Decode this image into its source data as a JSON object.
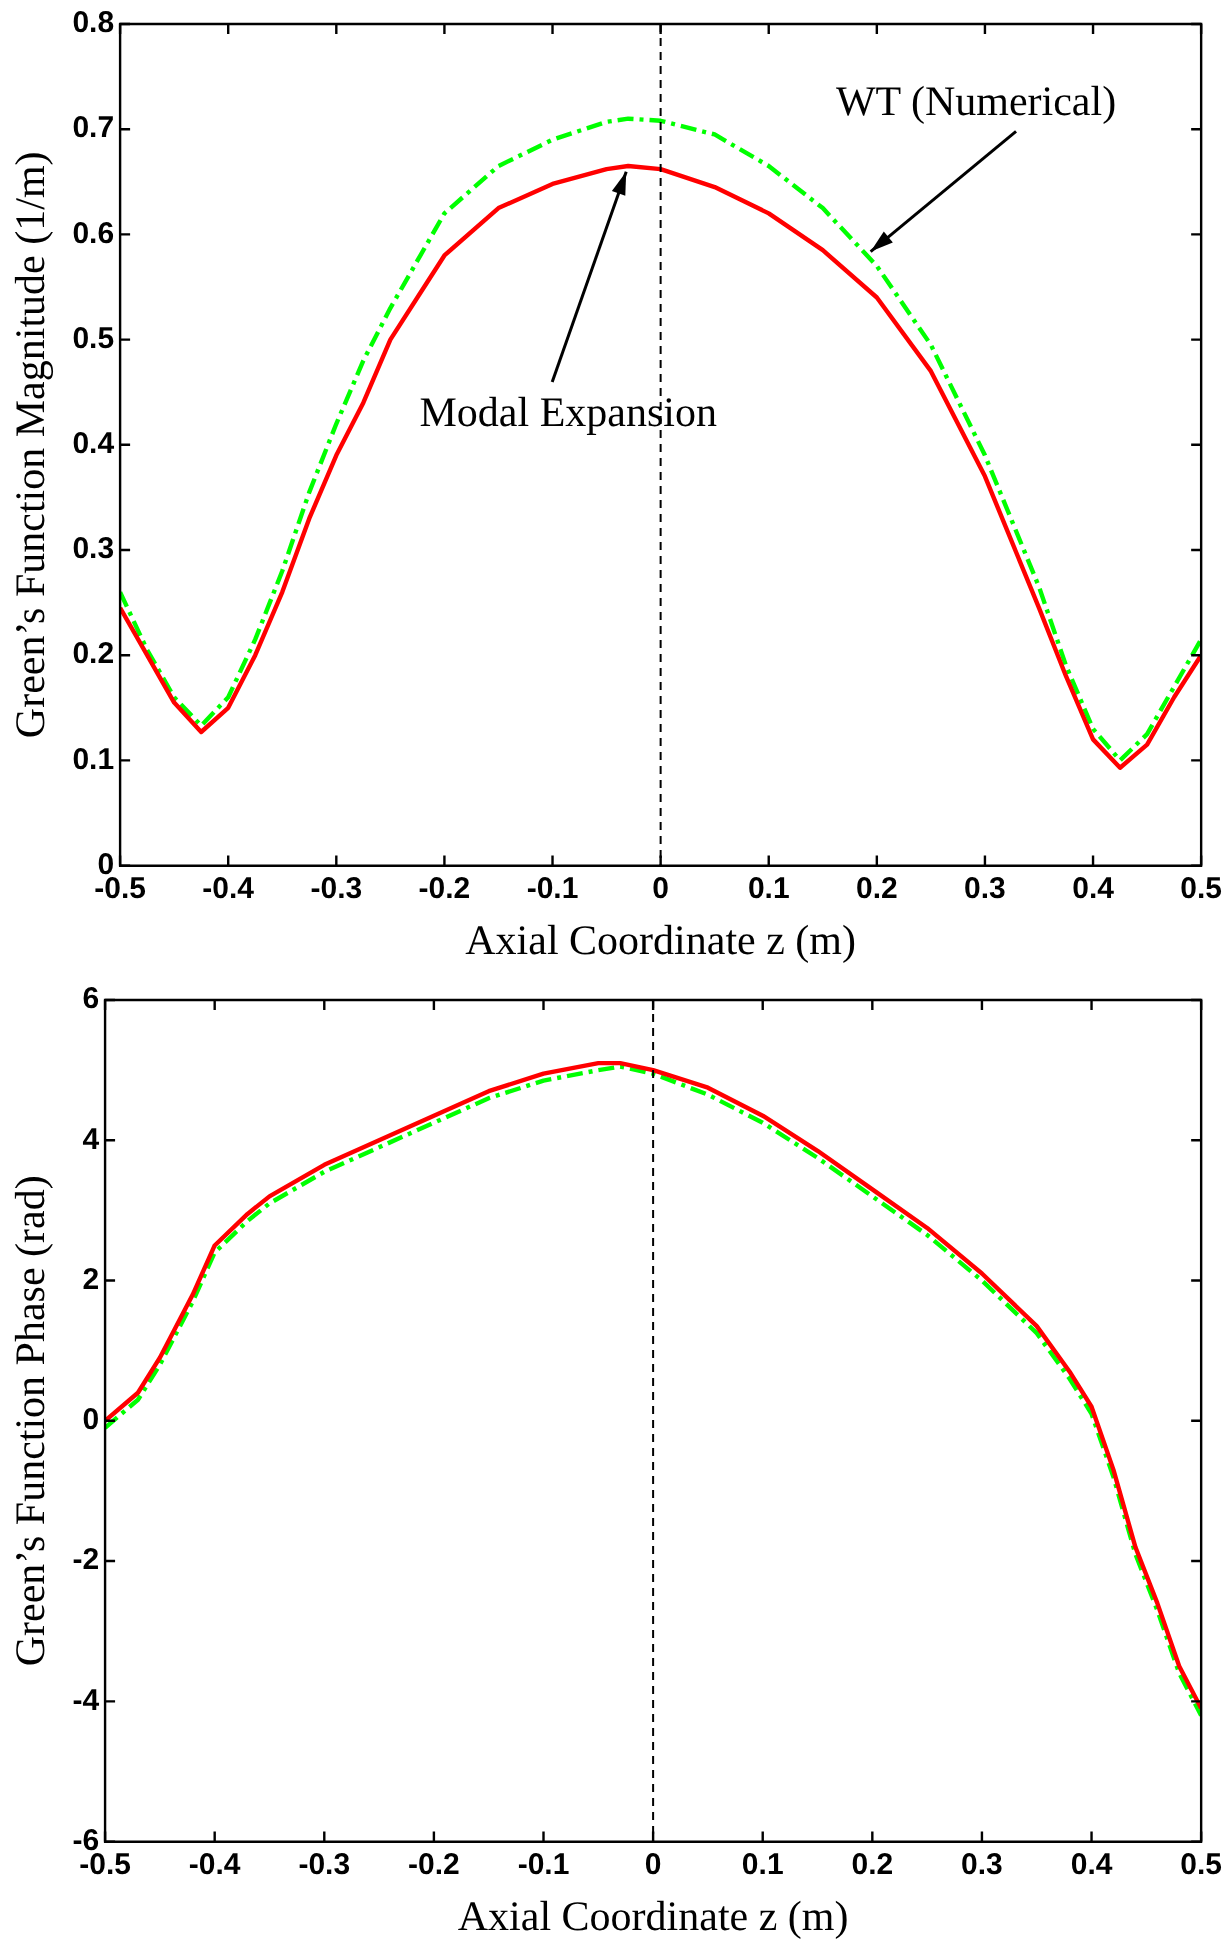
{
  "chart_data": [
    {
      "type": "line",
      "xlabel": "Axial Coordinate z (m)",
      "ylabel": "Green’s Function Magnitude (1/m)",
      "xlim": [
        -0.5,
        0.5
      ],
      "xticks": [
        -0.5,
        -0.4,
        -0.3,
        -0.2,
        -0.1,
        0,
        0.1,
        0.2,
        0.3,
        0.4,
        0.5
      ],
      "ylim": [
        0,
        0.8
      ],
      "yticks": [
        0,
        0.1,
        0.2,
        0.3,
        0.4,
        0.5,
        0.6,
        0.7,
        0.8
      ],
      "grid": false,
      "legend": false,
      "marker": "none",
      "x": [
        -0.5,
        -0.475,
        -0.45,
        -0.425,
        -0.4,
        -0.375,
        -0.35,
        -0.325,
        -0.3,
        -0.275,
        -0.25,
        -0.225,
        -0.2,
        -0.15,
        -0.1,
        -0.05,
        -0.03,
        0,
        0.05,
        0.1,
        0.15,
        0.2,
        0.25,
        0.3,
        0.35,
        0.375,
        0.4,
        0.425,
        0.45,
        0.475,
        0.5
      ],
      "series": [
        {
          "color": "#ff0000",
          "line_style": "solid",
          "values": [
            0.245,
            0.2,
            0.155,
            0.127,
            0.15,
            0.2,
            0.26,
            0.33,
            0.39,
            0.44,
            0.5,
            0.54,
            0.58,
            0.625,
            0.648,
            0.662,
            0.665,
            0.662,
            0.645,
            0.62,
            0.585,
            0.54,
            0.47,
            0.37,
            0.245,
            0.18,
            0.12,
            0.093,
            0.115,
            0.16,
            0.2
          ]
        },
        {
          "color": "#00ff00",
          "line_style": "dashed",
          "values": [
            0.26,
            0.205,
            0.16,
            0.133,
            0.16,
            0.215,
            0.28,
            0.355,
            0.42,
            0.48,
            0.53,
            0.575,
            0.62,
            0.665,
            0.69,
            0.707,
            0.71,
            0.708,
            0.695,
            0.665,
            0.625,
            0.57,
            0.495,
            0.39,
            0.265,
            0.19,
            0.13,
            0.1,
            0.125,
            0.17,
            0.215
          ]
        }
      ],
      "ref_lines": [
        {
          "axis": "x",
          "value": 0,
          "color": "#000000",
          "line_style": "dashed"
        }
      ],
      "annotations": [
        {
          "text": "Modal Expansion",
          "x": -0.03,
          "y": 0.665
        },
        {
          "text": "WT (Numerical)",
          "x": 0.19,
          "y": 0.58
        }
      ]
    },
    {
      "type": "line",
      "xlabel": "Axial Coordinate z (m)",
      "ylabel": "Green’s Function Phase (rad)",
      "xlim": [
        -0.5,
        0.5
      ],
      "xticks": [
        -0.5,
        -0.4,
        -0.3,
        -0.2,
        -0.1,
        0,
        0.1,
        0.2,
        0.3,
        0.4,
        0.5
      ],
      "ylim": [
        -6,
        6
      ],
      "yticks": [
        -6,
        -4,
        -2,
        0,
        2,
        4,
        6
      ],
      "grid": false,
      "legend": false,
      "marker": "none",
      "x": [
        -0.5,
        -0.47,
        -0.45,
        -0.42,
        -0.4,
        -0.37,
        -0.35,
        -0.3,
        -0.25,
        -0.2,
        -0.15,
        -0.1,
        -0.05,
        -0.03,
        0,
        0.05,
        0.1,
        0.15,
        0.2,
        0.25,
        0.3,
        0.35,
        0.38,
        0.4,
        0.42,
        0.44,
        0.46,
        0.48,
        0.5
      ],
      "series": [
        {
          "color": "#ff0000",
          "line_style": "solid",
          "values": [
            0,
            0.4,
            0.9,
            1.8,
            2.5,
            2.95,
            3.2,
            3.65,
            4.0,
            4.35,
            4.7,
            4.95,
            5.1,
            5.1,
            5.0,
            4.75,
            4.35,
            3.85,
            3.3,
            2.75,
            2.1,
            1.35,
            0.7,
            0.2,
            -0.7,
            -1.8,
            -2.6,
            -3.5,
            -4.1
          ]
        },
        {
          "color": "#00ff00",
          "line_style": "dashed",
          "values": [
            -0.1,
            0.3,
            0.8,
            1.7,
            2.4,
            2.85,
            3.1,
            3.55,
            3.9,
            4.25,
            4.6,
            4.85,
            5.0,
            5.05,
            4.95,
            4.65,
            4.25,
            3.75,
            3.2,
            2.65,
            2.0,
            1.25,
            0.6,
            0.1,
            -0.8,
            -1.9,
            -2.7,
            -3.6,
            -4.2
          ]
        }
      ],
      "ref_lines": [
        {
          "axis": "x",
          "value": 0,
          "color": "#000000",
          "line_style": "dashed"
        }
      ]
    }
  ]
}
